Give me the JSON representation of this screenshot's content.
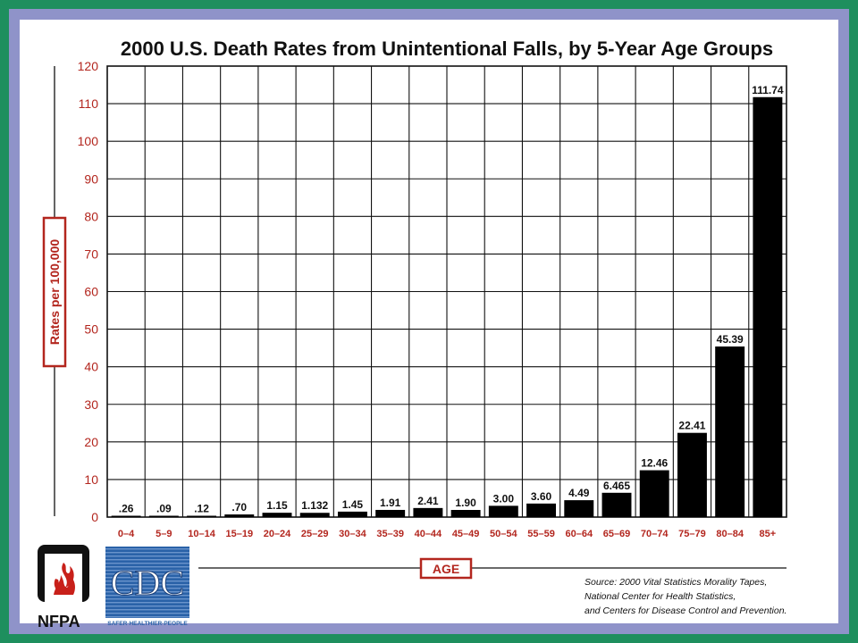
{
  "chart_data": {
    "type": "bar",
    "title": "2000 U.S. Death Rates from Unintentional Falls, by 5-Year Age Groups",
    "xlabel": "AGE",
    "ylabel": "Rates per 100,000",
    "ylim": [
      0,
      120
    ],
    "yticks": [
      0,
      10,
      20,
      30,
      40,
      50,
      60,
      70,
      80,
      90,
      100,
      110,
      120
    ],
    "grid": true,
    "categories": [
      "0–4",
      "5–9",
      "10–14",
      "15–19",
      "20–24",
      "25–29",
      "30–34",
      "35–39",
      "40–44",
      "45–49",
      "50–54",
      "55–59",
      "60–64",
      "65–69",
      "70–74",
      "75–79",
      "80–84",
      "85+"
    ],
    "values": [
      0.26,
      0.09,
      0.12,
      0.7,
      1.15,
      1.132,
      1.45,
      1.91,
      2.41,
      1.9,
      3.0,
      3.6,
      4.49,
      6.465,
      12.46,
      22.41,
      45.39,
      111.74
    ],
    "value_labels": [
      ".26",
      ".09",
      ".12",
      ".70",
      "1.15",
      "1.132",
      "1.45",
      "1.91",
      "2.41",
      "1.90",
      "3.00",
      "3.60",
      "4.49",
      "6.465",
      "12.46",
      "22.41",
      "45.39",
      "111.74"
    ]
  },
  "colors": {
    "bar": "#000000",
    "accent_red": "#b3261e",
    "frame_green": "#1e8f5e",
    "frame_purple": "#8f93c9"
  },
  "source": {
    "line1": "Source: 2000 Vital Statistics Morality Tapes,",
    "line2": "National Center for Health Statistics,",
    "line3": "and Centers for Disease Control and Prevention."
  },
  "logos": {
    "nfpa": "NFPA",
    "cdc": "CDC",
    "cdc_tagline": "SAFER·HEALTHIER·PEOPLE"
  }
}
